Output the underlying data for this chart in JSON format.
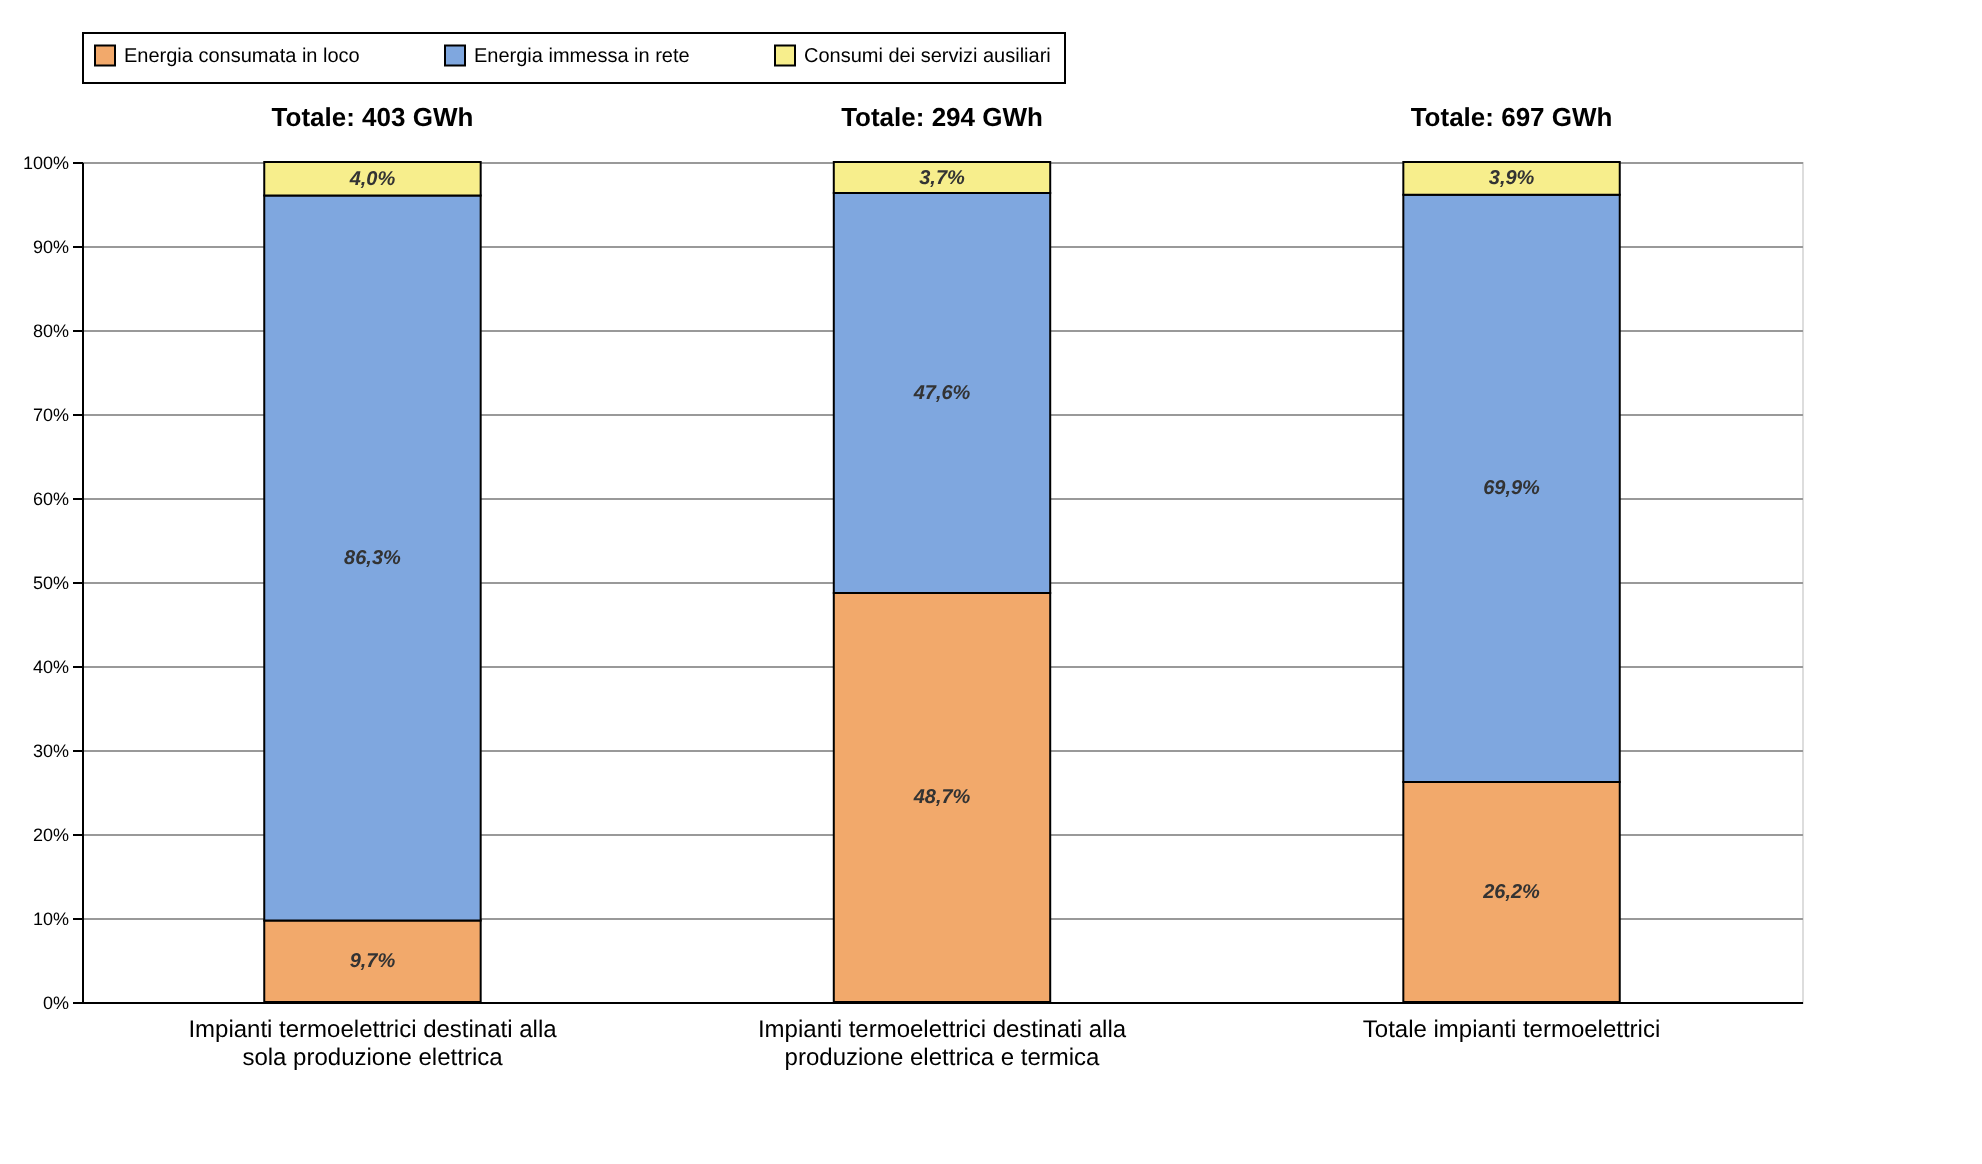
{
  "chart_data": {
    "type": "bar",
    "stacked": true,
    "categories": [
      "Impianti termoelettrici destinati alla sola produzione elettrica",
      "Impianti termoelettrici destinati alla produzione elettrica e termica",
      "Totale impianti termoelettrici"
    ],
    "series": [
      {
        "name": "Energia consumata in loco",
        "color": "#f2a96b",
        "values": [
          9.7,
          48.7,
          26.2
        ],
        "value_labels": [
          "9,7%",
          "48,7%",
          "26,2%"
        ]
      },
      {
        "name": "Energia immessa in rete",
        "color": "#7fa7df",
        "values": [
          86.3,
          47.6,
          69.9
        ],
        "value_labels": [
          "86,3%",
          "47,6%",
          "69,9%"
        ]
      },
      {
        "name": "Consumi dei servizi ausiliari",
        "color": "#f7ee8c",
        "values": [
          4.0,
          3.7,
          3.9
        ],
        "value_labels": [
          "4,0%",
          "3,7%",
          "3,9%"
        ]
      }
    ],
    "annotations": [
      {
        "text": "Totale: 403 GWh",
        "x": "Impianti termoelettrici destinati alla sola produzione elettrica",
        "y": 100
      },
      {
        "text": "Totale: 294 GWh",
        "x": "Impianti termoelettrici destinati alla produzione elettrica e termica",
        "y": 100
      },
      {
        "text": "Totale: 697 GWh",
        "x": "Totale impianti termoelettrici",
        "y": 100
      }
    ],
    "ylim": [
      0,
      100
    ],
    "yticks": [
      {
        "value": 0,
        "label": "0%"
      },
      {
        "value": 10,
        "label": "10%"
      },
      {
        "value": 20,
        "label": "20%"
      },
      {
        "value": 30,
        "label": "30%"
      },
      {
        "value": 40,
        "label": "40%"
      },
      {
        "value": 50,
        "label": "50%"
      },
      {
        "value": 60,
        "label": "60%"
      },
      {
        "value": 70,
        "label": "70%"
      },
      {
        "value": 80,
        "label": "80%"
      },
      {
        "value": 90,
        "label": "90%"
      },
      {
        "value": 100,
        "label": "100%"
      }
    ],
    "grid": "y",
    "legend": "top"
  }
}
